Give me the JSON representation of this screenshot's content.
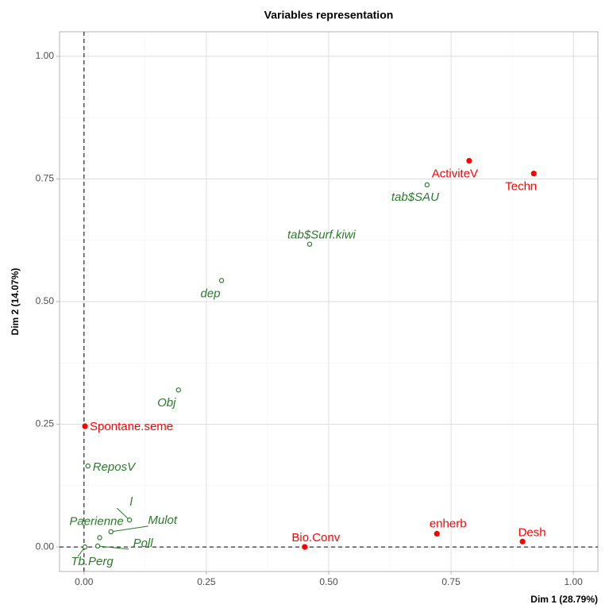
{
  "chart_data": {
    "type": "scatter",
    "title": "Variables representation",
    "x_label": "Dim 1 (28.79%)",
    "y_label": "Dim 2 (14.07%)",
    "xlim": [
      -0.05,
      1.05
    ],
    "ylim": [
      -0.05,
      1.05
    ],
    "xticks": [
      {
        "value": 0,
        "label": "0.00"
      },
      {
        "value": 0.25,
        "label": "0.25"
      },
      {
        "value": 0.5,
        "label": "0.50"
      },
      {
        "value": 0.75,
        "label": "0.75"
      },
      {
        "value": 1,
        "label": "1.00"
      }
    ],
    "yticks": [
      {
        "value": 0,
        "label": "0.00"
      },
      {
        "value": 0.25,
        "label": "0.25"
      },
      {
        "value": 0.5,
        "label": "0.50"
      },
      {
        "value": 0.75,
        "label": "0.75"
      },
      {
        "value": 1,
        "label": "1.00"
      }
    ],
    "grid": true,
    "reference_lines": {
      "x": 0,
      "y": 0
    },
    "series": [
      {
        "color": "#ff0000",
        "marker": "filled",
        "labels": [
          "ActiviteV",
          "Techn",
          "Spontane.seme",
          "Bio.Conv",
          "enherb",
          "Desh"
        ],
        "x": [
          0.787,
          0.919,
          0.002,
          0.451,
          0.721,
          0.896
        ],
        "values": [
          0.787,
          0.761,
          0.246,
          0.0,
          0.027,
          0.011
        ]
      },
      {
        "color": "#2a7a2a",
        "marker": "open",
        "labels": [
          "tab$SAU",
          "tab$Surf.kiwi",
          "dep",
          "Obj",
          "ReposV",
          "l",
          "Mulot",
          "Paerienne",
          "Poll",
          "Tb.Perg"
        ],
        "x": [
          0.701,
          0.461,
          0.281,
          0.193,
          0.008,
          0.093,
          0.055,
          0.032,
          0.028,
          0.002
        ],
        "values": [
          0.738,
          0.617,
          0.543,
          0.32,
          0.165,
          0.055,
          0.031,
          0.019,
          0.002,
          0.0
        ]
      }
    ]
  }
}
